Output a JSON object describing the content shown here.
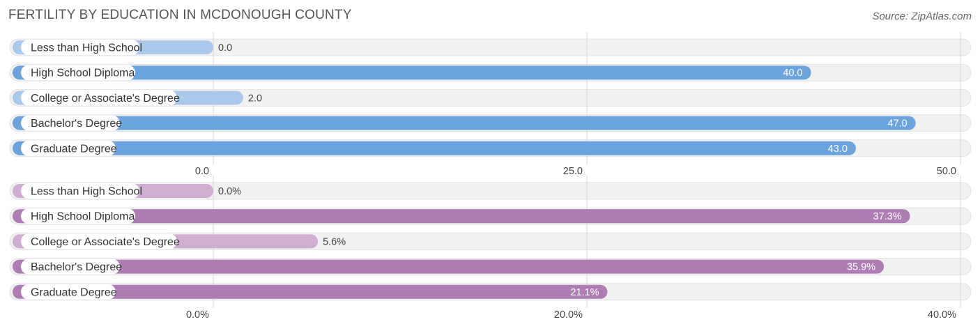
{
  "header": {
    "title": "FERTILITY BY EDUCATION IN MCDONOUGH COUNTY",
    "source": "Source: ZipAtlas.com"
  },
  "chart_data": [
    {
      "type": "bar",
      "orientation": "horizontal",
      "categories": [
        "Less than High School",
        "High School Diploma",
        "College or Associate's Degree",
        "Bachelor's Degree",
        "Graduate Degree"
      ],
      "values": [
        0.0,
        40.0,
        2.0,
        47.0,
        43.0
      ],
      "value_labels": [
        "0.0",
        "40.0",
        "2.0",
        "47.0",
        "43.0"
      ],
      "xlim": [
        0,
        50
      ],
      "ticks": [
        "0.0",
        "25.0",
        "50.0"
      ],
      "tick_values": [
        0,
        25,
        50
      ],
      "colors": {
        "strong": "#6ba3df",
        "light": "#a9c8ec"
      },
      "grid": true
    },
    {
      "type": "bar",
      "orientation": "horizontal",
      "categories": [
        "Less than High School",
        "High School Diploma",
        "College or Associate's Degree",
        "Bachelor's Degree",
        "Graduate Degree"
      ],
      "values": [
        0.0,
        37.3,
        5.6,
        35.9,
        21.1
      ],
      "value_labels": [
        "0.0%",
        "37.3%",
        "5.6%",
        "35.9%",
        "21.1%"
      ],
      "xlim": [
        0,
        40
      ],
      "ticks": [
        "0.0%",
        "20.0%",
        "40.0%"
      ],
      "tick_values": [
        0,
        20,
        40
      ],
      "colors": {
        "strong": "#b07cb5",
        "light": "#d0aed3"
      },
      "grid": true
    }
  ]
}
